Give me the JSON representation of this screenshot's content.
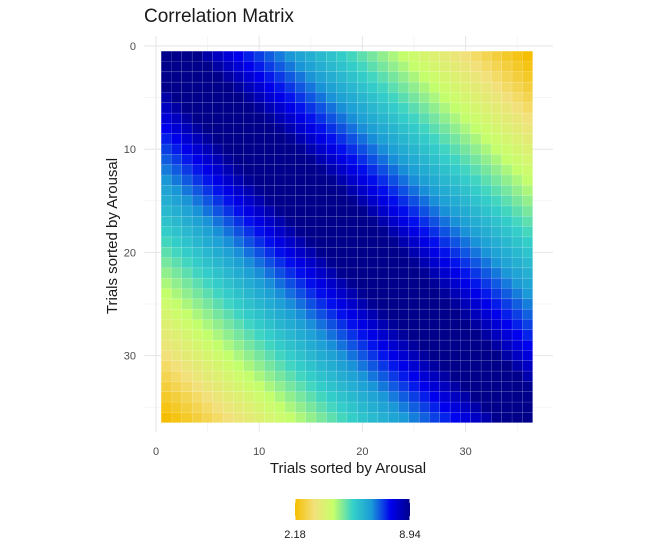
{
  "chart_data": {
    "type": "heatmap",
    "title": "Correlation Matrix",
    "xlabel": "Trials sorted by Arousal",
    "ylabel": "Trials sorted by Arousal",
    "n": 36,
    "xlim": [
      0,
      37
    ],
    "ylim": [
      0,
      37
    ],
    "x_ticks": [
      0,
      10,
      20,
      30
    ],
    "y_ticks": [
      0,
      10,
      20,
      30
    ],
    "y_reversed": true,
    "grid": true,
    "legend": {
      "placement": "bottom",
      "min": 2.18,
      "max": 8.94,
      "min_label": "2.18",
      "max_label": "8.94"
    },
    "colorscale": [
      "#f5be00",
      "#f2e17b",
      "#c8ff6a",
      "#36d2c8",
      "#1a9ad6",
      "#0000ee",
      "#00008a"
    ],
    "value_model": {
      "description": "value[i][j] = max - (max - min) * ((|i-j|)/35)^0.9 band, distance between sorted trials",
      "peak": 8.94,
      "floor": 2.18
    }
  }
}
